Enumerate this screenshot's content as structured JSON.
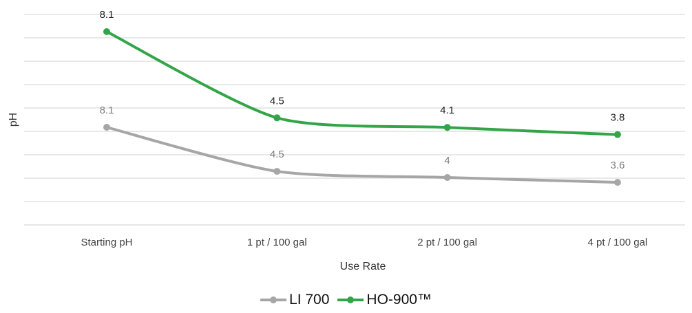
{
  "chart_data": {
    "type": "line",
    "categories": [
      "Starting pH",
      "1 pt / 100 gal",
      "2 pt / 100 gal",
      "4 pt / 100 gal"
    ],
    "series": [
      {
        "name": "LI 700",
        "values": [
          8.1,
          4.5,
          4,
          3.6
        ],
        "labels": [
          "8.1",
          "4.5",
          "4",
          "3.6"
        ],
        "color": "#a6a6a6"
      },
      {
        "name": "HO-900™",
        "values": [
          8.1,
          4.5,
          4.1,
          3.8
        ],
        "labels": [
          "8.1",
          "4.5",
          "4.1",
          "3.8"
        ],
        "color": "#33a548"
      }
    ],
    "xlabel": "Use Rate",
    "ylabel": "pH",
    "grid": true,
    "legend_position": "bottom"
  }
}
